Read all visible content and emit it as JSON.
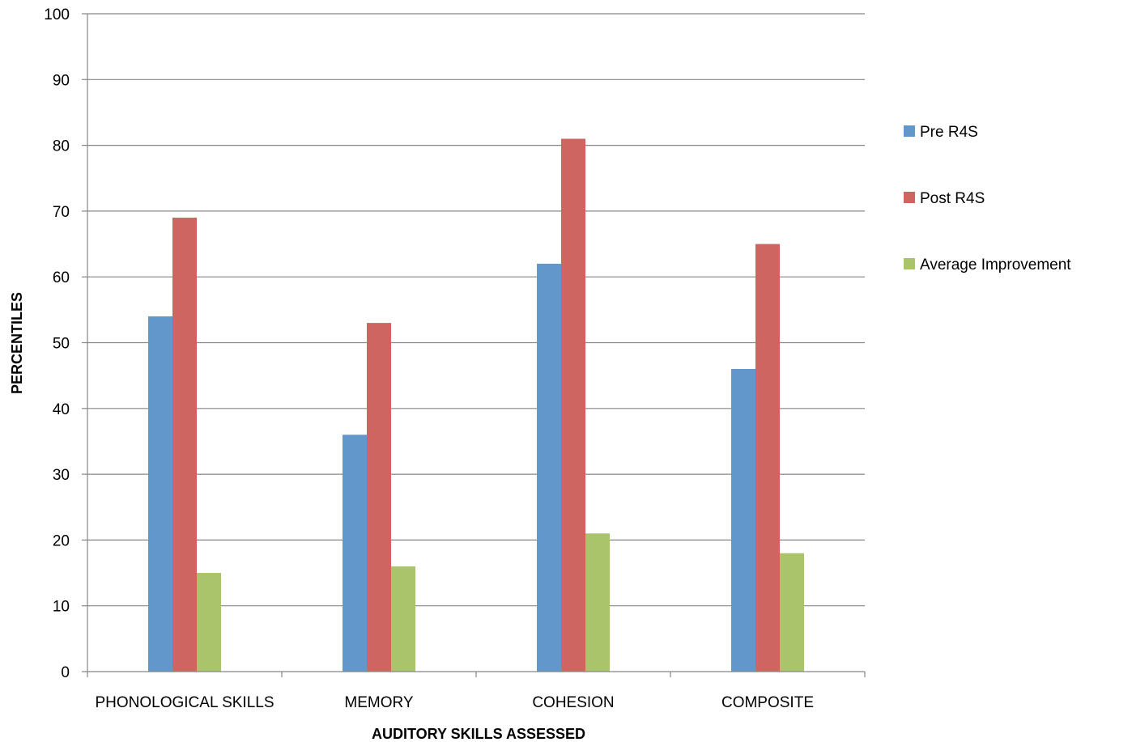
{
  "chart_data": {
    "type": "bar",
    "title": "",
    "xlabel": "AUDITORY SKILLS ASSESSED",
    "ylabel": "PERCENTILES",
    "ylim": [
      0,
      100
    ],
    "yticks": [
      "0",
      "10",
      "20",
      "30",
      "40",
      "50",
      "60",
      "70",
      "80",
      "90",
      "100"
    ],
    "grid": true,
    "legend_position": "right",
    "categories": [
      "PHONOLOGICAL SKILLS",
      "MEMORY",
      "COHESION",
      "COMPOSITE"
    ],
    "series": [
      {
        "name": "Pre R4S",
        "color": "#6197CB",
        "values": [
          54,
          36,
          62,
          46
        ]
      },
      {
        "name": "Post R4S",
        "color": "#CF6560",
        "values": [
          69,
          53,
          81,
          65
        ]
      },
      {
        "name": "Average Improvement",
        "color": "#A9C46B",
        "values": [
          15,
          16,
          21,
          18
        ]
      }
    ]
  }
}
